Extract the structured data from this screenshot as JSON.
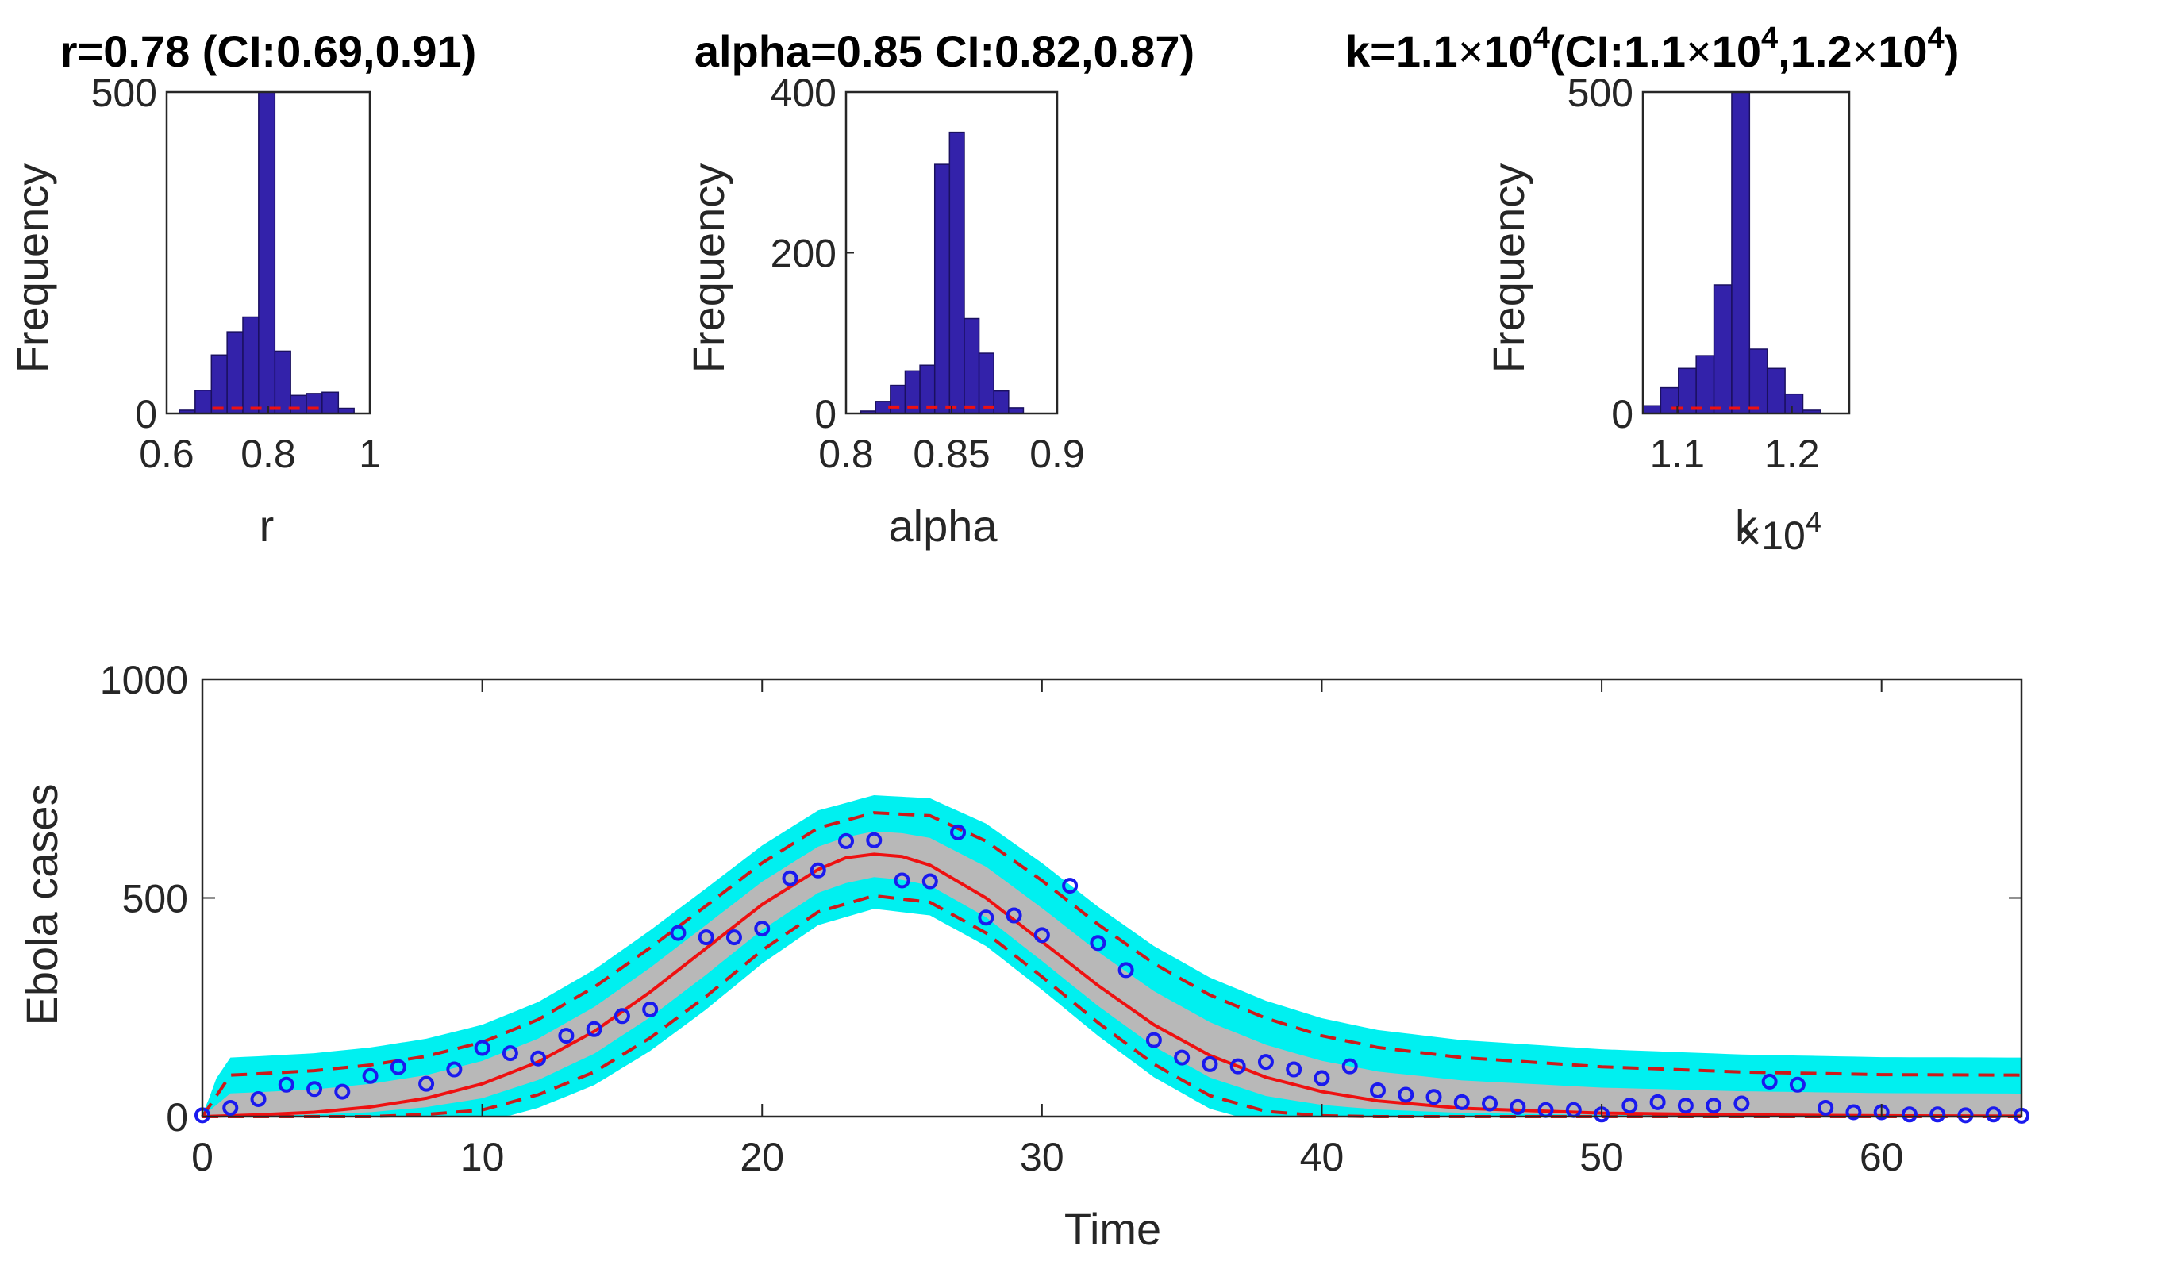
{
  "colors": {
    "bar_fill": "#3322aa",
    "bar_edge": "#1a1060",
    "fit_line": "#ee1111",
    "ci_band": "#b8b8b8",
    "bootstrap_curves": "#00f0f0",
    "data_points": "#1a1aee"
  },
  "chart_data": [
    {
      "type": "bar",
      "title": "r=0.78 (CI:0.69,0.91)",
      "xlabel": "r",
      "ylabel": "Frequency",
      "xlim": [
        0.6,
        1.0
      ],
      "ylim": [
        0,
        500
      ],
      "xticks": [
        0.6,
        0.8,
        1.0
      ],
      "xtick_labels": [
        "0.6",
        "0.8",
        "1"
      ],
      "yticks": [
        0,
        500
      ],
      "ytick_labels": [
        "0",
        "500"
      ],
      "bin_edges": [
        0.625,
        0.656,
        0.688,
        0.719,
        0.75,
        0.781,
        0.813,
        0.844,
        0.875,
        0.906,
        0.938,
        0.969
      ],
      "values": [
        5,
        36,
        91,
        127,
        150,
        500,
        97,
        28,
        31,
        33,
        8
      ],
      "ci_line": {
        "from": 0.69,
        "to": 0.91,
        "y": 8
      }
    },
    {
      "type": "bar",
      "title": "alpha=0.85 CI:0.82,0.87)",
      "xlabel": "alpha",
      "ylabel": "Frequency",
      "xlim": [
        0.8,
        0.9
      ],
      "ylim": [
        0,
        400
      ],
      "xticks": [
        0.8,
        0.85,
        0.9
      ],
      "xtick_labels": [
        "0.8",
        "0.85",
        "0.9"
      ],
      "yticks": [
        0,
        200,
        400
      ],
      "ytick_labels": [
        "0",
        "200",
        "400"
      ],
      "bin_edges": [
        0.807,
        0.814,
        0.821,
        0.828,
        0.835,
        0.842,
        0.849,
        0.856,
        0.863,
        0.87,
        0.877,
        0.884
      ],
      "values": [
        3,
        15,
        35,
        53,
        60,
        310,
        350,
        118,
        75,
        28,
        7
      ],
      "ci_line": {
        "from": 0.82,
        "to": 0.87,
        "y": 8
      }
    },
    {
      "type": "bar",
      "title_base": "k=1.1",
      "title_ci_label": "(CI:1.1",
      "title_ci_mid": ",1.2",
      "title_ci_end": ")",
      "title_times": "×",
      "title_ten": "10",
      "title_exp": "4",
      "xlabel": "k",
      "ylabel": "Frequency",
      "x_multiplier": "×10",
      "x_multiplier_exp": "4",
      "xlim": [
        10700,
        12500
      ],
      "ylim": [
        0,
        500
      ],
      "xticks": [
        11000,
        12000
      ],
      "xtick_labels": [
        "1.1",
        "1.2"
      ],
      "yticks": [
        0,
        500
      ],
      "ytick_labels": [
        "0",
        "500"
      ],
      "bin_edges": [
        10700,
        10855,
        11010,
        11165,
        11320,
        11475,
        11630,
        11785,
        11940,
        12095,
        12250
      ],
      "values": [
        12,
        40,
        70,
        90,
        200,
        500,
        100,
        70,
        30,
        5
      ],
      "ci_line": {
        "from": 10950,
        "to": 11750,
        "y": 8
      }
    },
    {
      "type": "line",
      "xlabel": "Time",
      "ylabel": "Ebola cases",
      "xlim": [
        0,
        65
      ],
      "ylim": [
        0,
        1000
      ],
      "xticks": [
        0,
        10,
        20,
        30,
        40,
        50,
        60
      ],
      "xtick_labels": [
        "0",
        "10",
        "20",
        "30",
        "40",
        "50",
        "60"
      ],
      "yticks": [
        0,
        500,
        1000
      ],
      "ytick_labels": [
        "0",
        "500",
        "1000"
      ],
      "fit": {
        "t": [
          0,
          2,
          4,
          6,
          8,
          10,
          12,
          14,
          16,
          18,
          20,
          22,
          23,
          24,
          25,
          26,
          28,
          30,
          32,
          34,
          36,
          38,
          40,
          42,
          45,
          50,
          55,
          60,
          65
        ],
        "y": [
          0,
          4,
          10,
          22,
          42,
          75,
          125,
          195,
          285,
          385,
          485,
          565,
          592,
          600,
          595,
          575,
          500,
          400,
          300,
          210,
          140,
          90,
          57,
          36,
          19,
          8,
          4,
          2,
          1
        ]
      },
      "upper_ci": {
        "t": [
          0,
          1,
          2,
          4,
          6,
          8,
          10,
          12,
          14,
          16,
          18,
          20,
          22,
          24,
          26,
          28,
          30,
          32,
          34,
          36,
          38,
          40,
          42,
          45,
          50,
          55,
          60,
          65
        ],
        "y": [
          0,
          95,
          98,
          105,
          118,
          138,
          170,
          222,
          296,
          386,
          482,
          580,
          660,
          695,
          688,
          630,
          540,
          440,
          350,
          278,
          225,
          185,
          158,
          135,
          114,
          102,
          96,
          95
        ]
      },
      "lower_ci": {
        "t": [
          0,
          2,
          4,
          6,
          8,
          10,
          12,
          14,
          16,
          18,
          20,
          22,
          24,
          26,
          28,
          30,
          32,
          34,
          36,
          38,
          40,
          42,
          45,
          50,
          55,
          60,
          65
        ],
        "y": [
          0,
          0,
          0,
          0,
          5,
          15,
          50,
          102,
          180,
          275,
          380,
          468,
          505,
          490,
          420,
          320,
          215,
          120,
          48,
          12,
          2,
          0,
          0,
          0,
          0,
          0,
          0
        ]
      },
      "observed": {
        "t": [
          0,
          1,
          2,
          3,
          4,
          5,
          6,
          7,
          8,
          9,
          10,
          11,
          12,
          13,
          14,
          15,
          16,
          17,
          18,
          19,
          20,
          21,
          22,
          23,
          24,
          25,
          26,
          27,
          28,
          29,
          30,
          31,
          32,
          33,
          34,
          35,
          36,
          37,
          38,
          39,
          40,
          41,
          42,
          43,
          44,
          45,
          46,
          47,
          48,
          49,
          50,
          51,
          52,
          53,
          54,
          55,
          56,
          57,
          58,
          59,
          60,
          61,
          62,
          63,
          64,
          65
        ],
        "y": [
          3,
          20,
          40,
          73,
          63,
          57,
          93,
          113,
          75,
          108,
          157,
          145,
          133,
          185,
          200,
          230,
          245,
          420,
          410,
          410,
          430,
          545,
          563,
          630,
          632,
          540,
          538,
          650,
          455,
          460,
          415,
          528,
          397,
          335,
          175,
          135,
          120,
          115,
          125,
          108,
          88,
          115,
          60,
          50,
          45,
          33,
          30,
          22,
          15,
          15,
          5,
          25,
          33,
          25,
          25,
          30,
          80,
          73,
          20,
          10,
          10,
          5,
          5,
          3,
          5,
          2
        ]
      }
    }
  ]
}
